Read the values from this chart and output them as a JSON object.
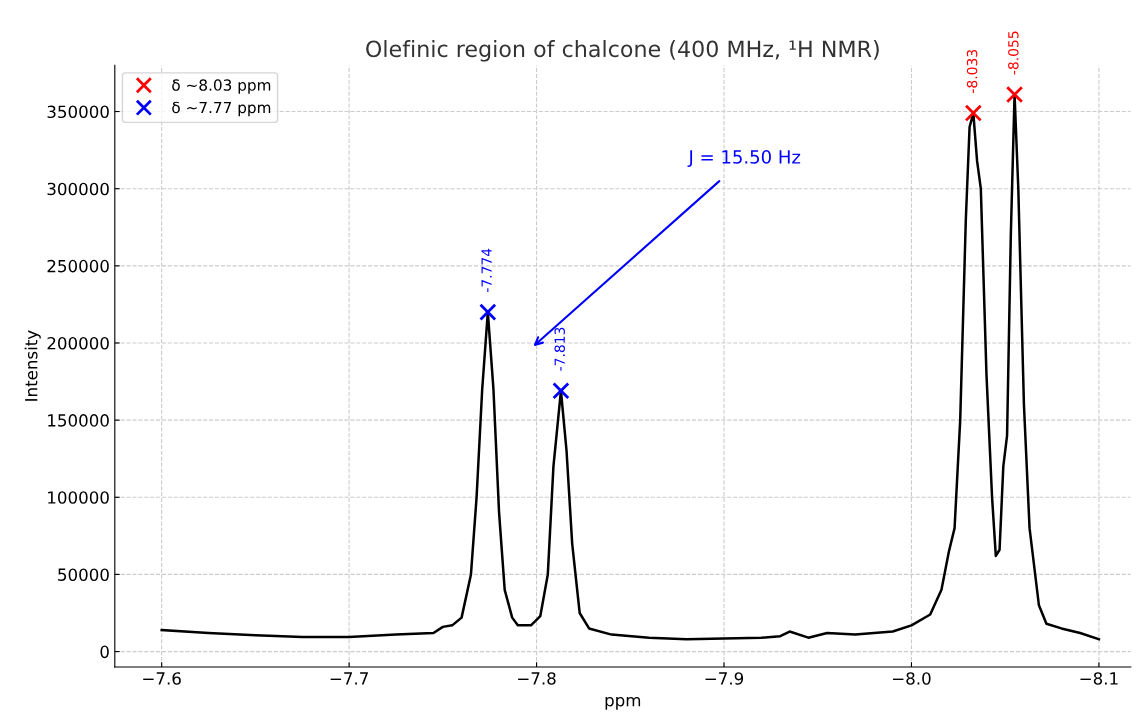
{
  "chart_data": {
    "type": "line",
    "title": "Olefinic region of chalcone (400 MHz, ¹H NMR)",
    "xlabel": "ppm",
    "ylabel": "Intensity",
    "xlim": [
      -7.575,
      -8.117
    ],
    "ylim": [
      -10000,
      380000
    ],
    "xticks": [
      {
        "value": -7.6,
        "label": "−7.6"
      },
      {
        "value": -7.7,
        "label": "−7.7"
      },
      {
        "value": -7.8,
        "label": "−7.8"
      },
      {
        "value": -7.9,
        "label": "−7.9"
      },
      {
        "value": -8.0,
        "label": "−8.0"
      },
      {
        "value": -8.1,
        "label": "−8.1"
      }
    ],
    "yticks": [
      0,
      50000,
      100000,
      150000,
      200000,
      250000,
      300000,
      350000
    ],
    "grid": true,
    "legend": "top left",
    "annotations": [
      "J = 15.50 Hz",
      {
        "text": "-8.033",
        "x": -8.033,
        "y": 349000
      },
      {
        "text": "-8.055",
        "x": -8.055,
        "y": 361000
      },
      {
        "text": "-7.774",
        "x": -7.774,
        "y": 220000
      },
      {
        "text": "-7.813",
        "x": -7.813,
        "y": 169000
      }
    ],
    "series": [
      {
        "color": "#000000",
        "marker": "none",
        "x": [
          -7.6,
          -7.625,
          -7.65,
          -7.675,
          -7.7,
          -7.725,
          -7.745,
          -7.75,
          -7.755,
          -7.76,
          -7.765,
          -7.768,
          -7.771,
          -7.774,
          -7.777,
          -7.78,
          -7.783,
          -7.787,
          -7.79,
          -7.797,
          -7.802,
          -7.806,
          -7.809,
          -7.813,
          -7.816,
          -7.819,
          -7.823,
          -7.828,
          -7.84,
          -7.86,
          -7.88,
          -7.9,
          -7.92,
          -7.93,
          -7.935,
          -7.945,
          -7.955,
          -7.97,
          -7.99,
          -8.0,
          -8.01,
          -8.016,
          -8.02,
          -8.023,
          -8.026,
          -8.029,
          -8.031,
          -8.033,
          -8.035,
          -8.037,
          -8.04,
          -8.043,
          -8.045,
          -8.047,
          -8.049,
          -8.051,
          -8.053,
          -8.055,
          -8.057,
          -8.06,
          -8.063,
          -8.068,
          -8.072,
          -8.08,
          -8.09,
          -8.1
        ],
        "values": [
          14000,
          12000,
          10500,
          9500,
          9500,
          11000,
          12000,
          16000,
          17000,
          22000,
          50000,
          100000,
          170000,
          220000,
          170000,
          90000,
          40000,
          22000,
          17000,
          17000,
          23000,
          50000,
          120000,
          169000,
          130000,
          70000,
          25000,
          15000,
          11000,
          9000,
          8000,
          8500,
          9000,
          10000,
          13000,
          9000,
          12000,
          11000,
          13000,
          17000,
          24000,
          40000,
          65000,
          80000,
          150000,
          280000,
          340000,
          349000,
          318000,
          300000,
          180000,
          100000,
          62000,
          66000,
          120000,
          140000,
          270000,
          361000,
          300000,
          160000,
          80000,
          30000,
          18000,
          15000,
          12000,
          8000
        ]
      },
      {
        "type": "scatter",
        "name": "δ ~8.03 ppm",
        "color": "#ff0000",
        "marker": "cross",
        "x": [
          -8.033,
          -8.055
        ],
        "values": [
          349000,
          361000
        ]
      },
      {
        "type": "scatter",
        "name": "δ ~7.77 ppm",
        "color": "#0000ff",
        "marker": "cross",
        "x": [
          -7.774,
          -7.813
        ],
        "values": [
          220000,
          169000
        ]
      }
    ]
  }
}
